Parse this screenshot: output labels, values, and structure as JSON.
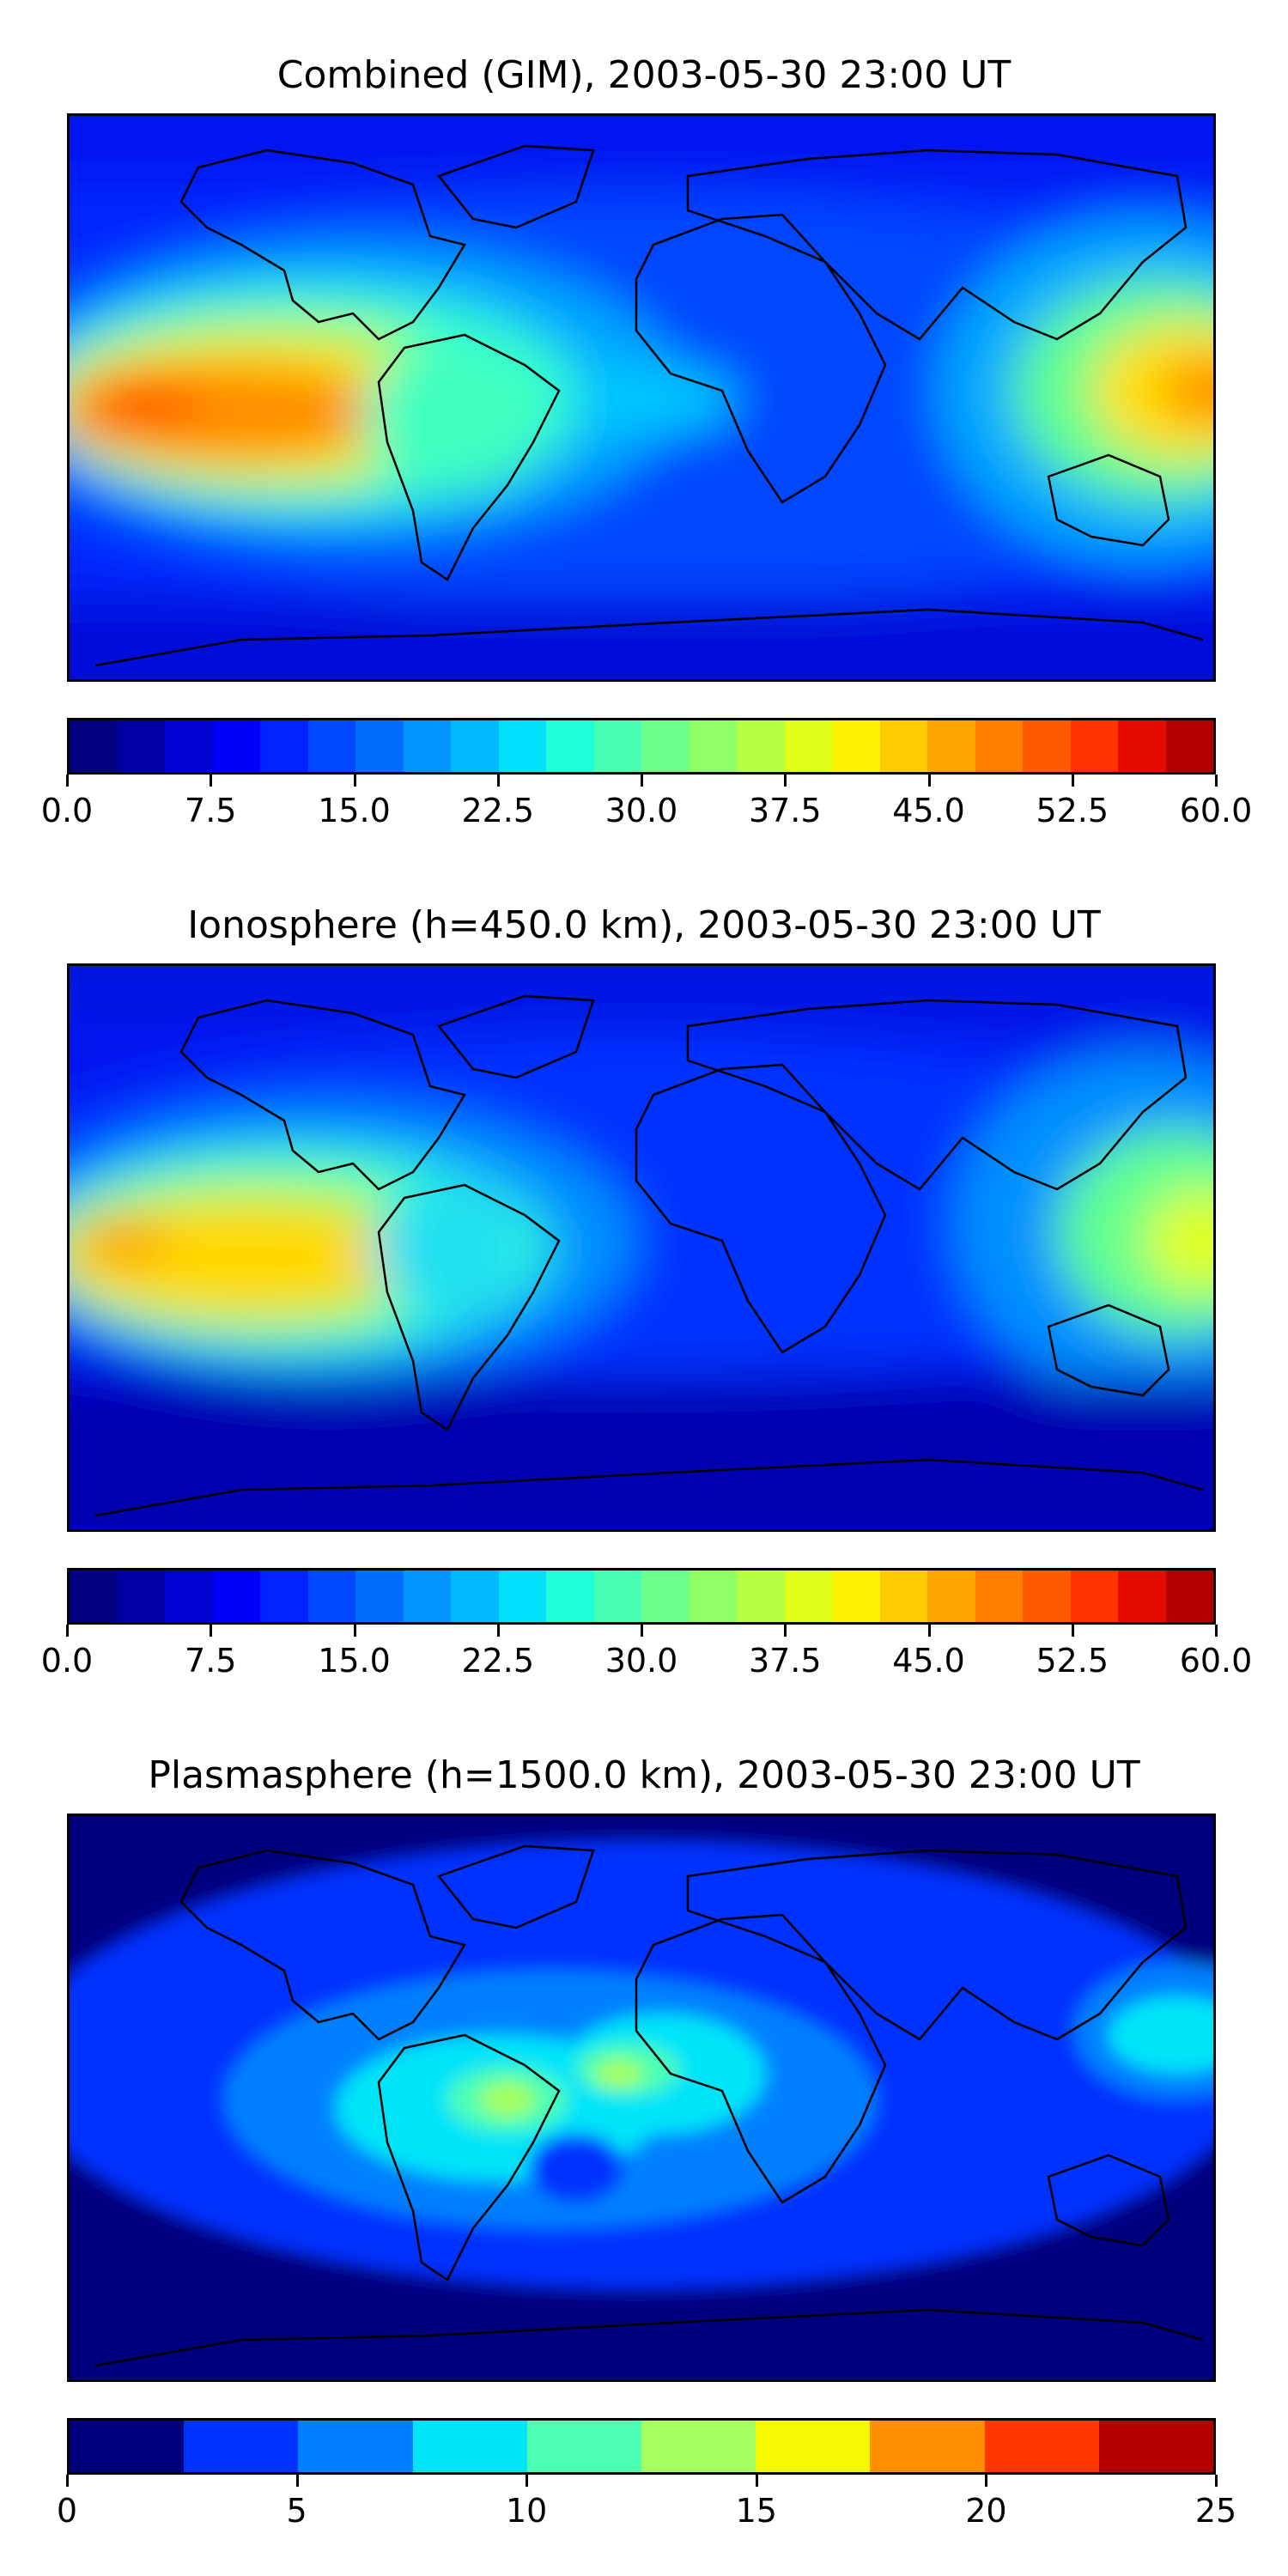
{
  "chart_data": [
    {
      "type": "heatmap",
      "title": "Combined (GIM), 2003-05-30 23:00 UT",
      "map": "world map with coastlines",
      "colormap": "jet",
      "colorbar": {
        "min": 0.0,
        "max": 60.0,
        "levels": 24,
        "tick_labels": [
          "0.0",
          "7.5",
          "15.0",
          "22.5",
          "30.0",
          "37.5",
          "45.0",
          "52.5",
          "60.0"
        ]
      },
      "features": [
        {
          "region": "Eastern Pacific (west of South America)",
          "level": 50
        },
        {
          "region": "Western Pacific (east of Asia/Australia)",
          "level": 45
        },
        {
          "region": "Tropical Atlantic / Northern South America",
          "level": 30
        },
        {
          "region": "High latitudes",
          "level": 7.5
        }
      ]
    },
    {
      "type": "heatmap",
      "title": "Ionosphere  (h=450.0 km), 2003-05-30 23:00 UT",
      "map": "world map with coastlines",
      "colormap": "jet",
      "colorbar": {
        "min": 0.0,
        "max": 60.0,
        "levels": 24,
        "tick_labels": [
          "0.0",
          "7.5",
          "15.0",
          "22.5",
          "30.0",
          "37.5",
          "45.0",
          "52.5",
          "60.0"
        ]
      },
      "features": [
        {
          "region": "Eastern Pacific (west of South America)",
          "level": 42
        },
        {
          "region": "Western Pacific (east of Asia/Australia)",
          "level": 37
        },
        {
          "region": "Northern South America",
          "level": 22
        },
        {
          "region": "Southern oceans",
          "level": 4
        }
      ]
    },
    {
      "type": "heatmap",
      "title": "Plasmasphere (h=1500.0 km), 2003-05-30 23:00 UT",
      "map": "world map with coastlines",
      "colormap": "jet",
      "colorbar": {
        "min": 0,
        "max": 25,
        "levels": 10,
        "tick_labels": [
          "0",
          "5",
          "10",
          "15",
          "20",
          "25"
        ]
      },
      "features": [
        {
          "region": "Northern Brazil",
          "level": 14
        },
        {
          "region": "West Africa",
          "level": 12
        },
        {
          "region": "Western Pacific",
          "level": 9
        },
        {
          "region": "Polar regions",
          "level": 2
        }
      ]
    }
  ],
  "colors": {
    "jet24": [
      "#000080",
      "#0000a6",
      "#0000d0",
      "#0000f8",
      "#0022ff",
      "#0048ff",
      "#006dff",
      "#0094ff",
      "#00baff",
      "#00e0fb",
      "#20ffd7",
      "#46ffb2",
      "#6dff8a",
      "#90ff66",
      "#b6ff41",
      "#ddff1a",
      "#fff100",
      "#ffcb00",
      "#ffa600",
      "#ff7e00",
      "#ff5900",
      "#ff3200",
      "#e60b00",
      "#b30000"
    ],
    "jet10": [
      "#00007f",
      "#0032ff",
      "#0080ff",
      "#00e4f8",
      "#4cffb3",
      "#a5ff5c",
      "#f7f700",
      "#ff8e00",
      "#ff3600",
      "#b50000"
    ]
  }
}
